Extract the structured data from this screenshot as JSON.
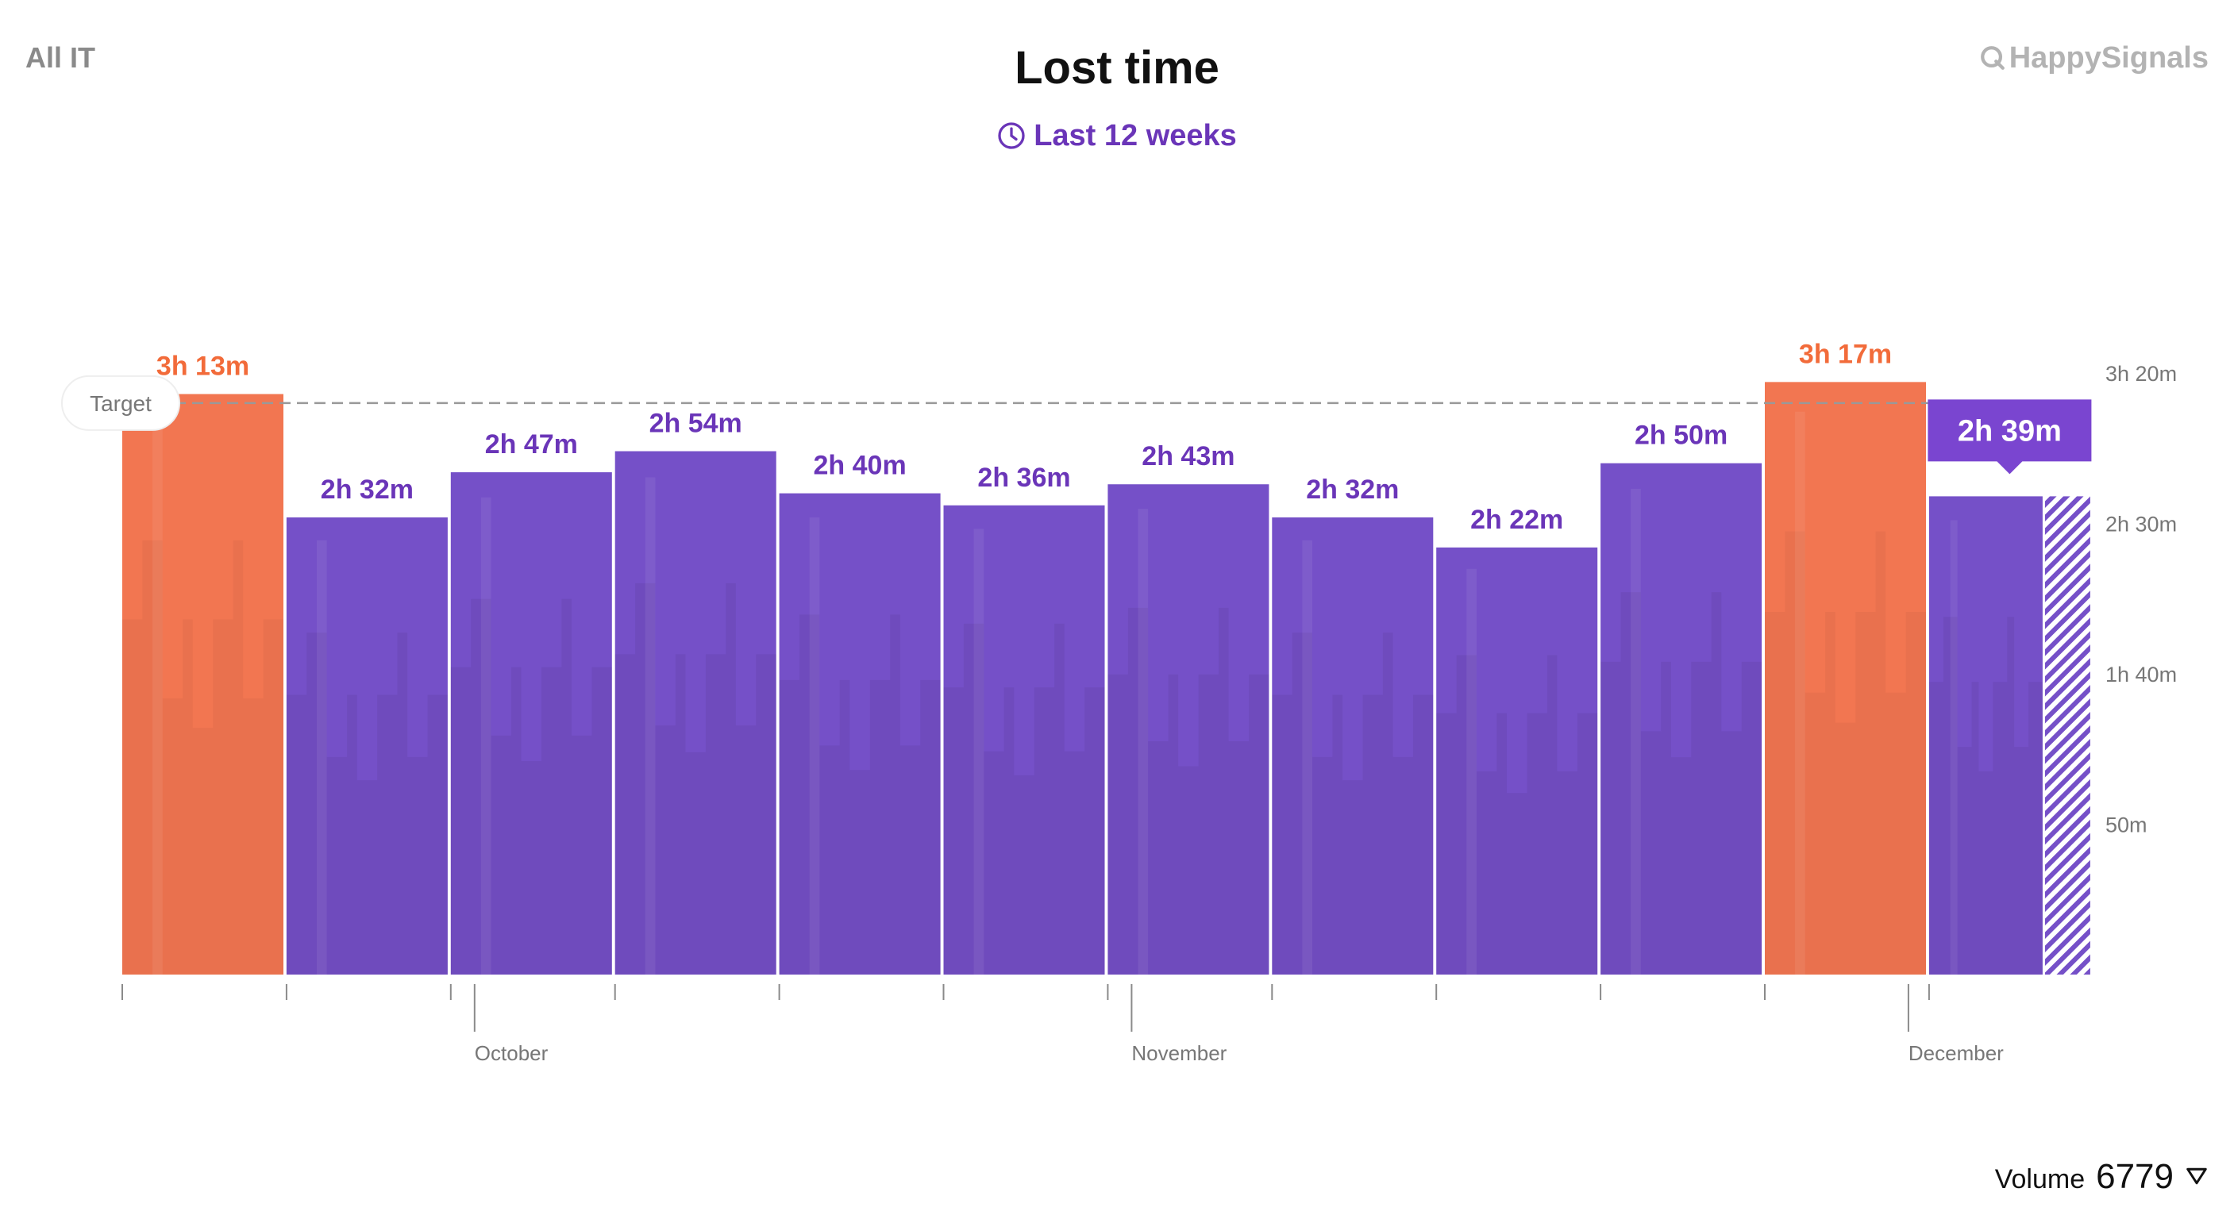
{
  "header": {
    "scope_label": "All IT",
    "title": "Lost time",
    "period_label": "Last 12 weeks",
    "brand": "HappySignals"
  },
  "footer": {
    "volume_label": "Volume",
    "volume_value": "6779"
  },
  "colors": {
    "purple": "#7550c8",
    "purple_label": "#6a35b8",
    "orange": "#f27651",
    "orange_label": "#f26b3a",
    "axis": "#8a8a8a",
    "target_line": "#999999"
  },
  "chart_data": {
    "type": "bar",
    "title": "Lost time",
    "subtitle": "Last 12 weeks",
    "value_unit": "minutes",
    "values": [
      193,
      152,
      167,
      174,
      160,
      156,
      163,
      152,
      142,
      170,
      197,
      159
    ],
    "labels": [
      "3h 13m",
      "2h 32m",
      "2h 47m",
      "2h 54m",
      "2h 40m",
      "2h 36m",
      "2h 43m",
      "2h 32m",
      "2h 22m",
      "2h 50m",
      "3h 17m",
      "2h 39m"
    ],
    "over_target": [
      true,
      false,
      false,
      false,
      false,
      false,
      false,
      false,
      false,
      false,
      true,
      false
    ],
    "selected_index": 11,
    "last_bar_partial": true,
    "target": 190,
    "target_label": "Target",
    "y_ticks": [
      50,
      100,
      150,
      200
    ],
    "y_tick_labels": [
      "50m",
      "1h 40m",
      "2h 30m",
      "3h 20m"
    ],
    "ylim": [
      0,
      200
    ],
    "month_labels": [
      {
        "label": "October",
        "after_bar": 2
      },
      {
        "label": "November",
        "after_bar": 6
      },
      {
        "label": "December",
        "after_bar": 11
      }
    ],
    "grid": false
  }
}
